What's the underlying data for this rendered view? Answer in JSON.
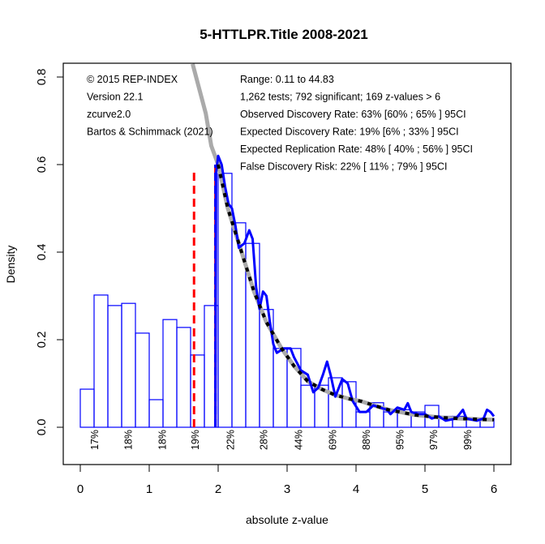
{
  "chart_data": {
    "type": "bar",
    "title": "5-HTTLPR.Title 2008-2021",
    "xlabel": "absolute z-value",
    "ylabel": "Density",
    "xlim": [
      0,
      6
    ],
    "ylim": [
      0,
      0.8
    ],
    "x_ticks": [
      "0",
      "1",
      "2",
      "3",
      "4",
      "5",
      "6"
    ],
    "y_ticks": [
      "0.0",
      "0.2",
      "0.4",
      "0.6",
      "0.8"
    ],
    "grid": false,
    "bin_width": 0.2,
    "bins_start": [
      0,
      0.2,
      0.4,
      0.6,
      0.8,
      1.0,
      1.2,
      1.4,
      1.6,
      1.8,
      2.0,
      2.2,
      2.4,
      2.6,
      2.8,
      3.0,
      3.2,
      3.4,
      3.6,
      3.8,
      4.0,
      4.2,
      4.4,
      4.6,
      4.8,
      5.0,
      5.2,
      5.4,
      5.6,
      5.8
    ],
    "bin_density": [
      0.087,
      0.302,
      0.278,
      0.283,
      0.215,
      0.063,
      0.246,
      0.228,
      0.165,
      0.278,
      0.58,
      0.467,
      0.42,
      0.269,
      0.18,
      0.18,
      0.096,
      0.096,
      0.113,
      0.104,
      0.035,
      0.056,
      0.035,
      0.04,
      0.035,
      0.05,
      0.025,
      0.025,
      0.02,
      0.02
    ],
    "bar_color": "#0000ff",
    "power_labels": [
      {
        "x": 0.2,
        "label": "17%"
      },
      {
        "x": 0.69,
        "label": "18%"
      },
      {
        "x": 1.18,
        "label": "18%"
      },
      {
        "x": 1.66,
        "label": "19%"
      },
      {
        "x": 2.17,
        "label": "22%"
      },
      {
        "x": 2.65,
        "label": "28%"
      },
      {
        "x": 3.16,
        "label": "44%"
      },
      {
        "x": 3.65,
        "label": "69%"
      },
      {
        "x": 4.14,
        "label": "88%"
      },
      {
        "x": 4.63,
        "label": "95%"
      },
      {
        "x": 5.12,
        "label": "97%"
      },
      {
        "x": 5.61,
        "label": "99%"
      }
    ],
    "fitted_curve": {
      "color": "#aaaaaa",
      "points": [
        [
          1.63,
          0.83
        ],
        [
          1.82,
          0.717
        ],
        [
          1.9,
          0.643
        ],
        [
          2.0,
          0.6
        ],
        [
          2.14,
          0.5
        ],
        [
          2.3,
          0.42
        ],
        [
          2.52,
          0.31
        ],
        [
          2.7,
          0.24
        ],
        [
          2.92,
          0.18
        ],
        [
          3.1,
          0.14
        ],
        [
          3.3,
          0.105
        ],
        [
          3.5,
          0.087
        ],
        [
          3.69,
          0.074
        ],
        [
          3.9,
          0.065
        ],
        [
          4.08,
          0.059
        ],
        [
          4.3,
          0.048
        ],
        [
          4.47,
          0.04
        ],
        [
          4.66,
          0.034
        ],
        [
          4.86,
          0.028
        ],
        [
          5.05,
          0.025
        ],
        [
          5.25,
          0.022
        ],
        [
          5.5,
          0.02
        ],
        [
          5.81,
          0.018
        ],
        [
          6.0,
          0.017
        ]
      ]
    },
    "model_dashed_curve": {
      "color": "#000000",
      "start_x": 1.96
    },
    "density_line": {
      "color": "#0000ff",
      "points": [
        [
          1.96,
          0
        ],
        [
          1.97,
          0.58
        ],
        [
          2.0,
          0.62
        ],
        [
          2.05,
          0.6
        ],
        [
          2.1,
          0.55
        ],
        [
          2.15,
          0.51
        ],
        [
          2.2,
          0.5
        ],
        [
          2.25,
          0.46
        ],
        [
          2.3,
          0.41
        ],
        [
          2.38,
          0.42
        ],
        [
          2.45,
          0.45
        ],
        [
          2.5,
          0.43
        ],
        [
          2.55,
          0.32
        ],
        [
          2.6,
          0.27
        ],
        [
          2.65,
          0.31
        ],
        [
          2.7,
          0.3
        ],
        [
          2.75,
          0.24
        ],
        [
          2.8,
          0.19
        ],
        [
          2.85,
          0.17
        ],
        [
          2.95,
          0.18
        ],
        [
          3.05,
          0.18
        ],
        [
          3.1,
          0.16
        ],
        [
          3.2,
          0.13
        ],
        [
          3.3,
          0.12
        ],
        [
          3.38,
          0.08
        ],
        [
          3.45,
          0.09
        ],
        [
          3.52,
          0.12
        ],
        [
          3.58,
          0.15
        ],
        [
          3.63,
          0.12
        ],
        [
          3.7,
          0.07
        ],
        [
          3.8,
          0.11
        ],
        [
          3.88,
          0.1
        ],
        [
          3.95,
          0.06
        ],
        [
          4.05,
          0.035
        ],
        [
          4.15,
          0.035
        ],
        [
          4.25,
          0.05
        ],
        [
          4.35,
          0.045
        ],
        [
          4.45,
          0.04
        ],
        [
          4.5,
          0.03
        ],
        [
          4.6,
          0.045
        ],
        [
          4.7,
          0.04
        ],
        [
          4.75,
          0.055
        ],
        [
          4.8,
          0.035
        ],
        [
          4.9,
          0.03
        ],
        [
          5.0,
          0.03
        ],
        [
          5.1,
          0.02
        ],
        [
          5.2,
          0.025
        ],
        [
          5.3,
          0.015
        ],
        [
          5.45,
          0.02
        ],
        [
          5.55,
          0.04
        ],
        [
          5.6,
          0.02
        ],
        [
          5.75,
          0.015
        ],
        [
          5.85,
          0.02
        ],
        [
          5.9,
          0.04
        ],
        [
          5.95,
          0.035
        ],
        [
          6.0,
          0.025
        ]
      ]
    },
    "vlines": [
      {
        "x": 1.65,
        "ymax": 0.59,
        "color": "#ff0000",
        "style": "dashed"
      },
      {
        "x": 1.96,
        "ymax": 0.6,
        "color": "#ff0000",
        "style": "solid"
      },
      {
        "x": 1.96,
        "ymax": 0.6,
        "color": "#0000ff",
        "style": "dashed"
      }
    ],
    "annotations_left": [
      "© 2015 REP-INDEX",
      "Version 22.1",
      "zcurve2.0",
      "Bartos & Schimmack (2021)"
    ],
    "annotations_right": [
      "Range: 0.11 to 44.83",
      "1,262 tests; 792 significant; 169 z-values > 6",
      "Observed Discovery Rate: 63% [60% ; 65% ] 95CI",
      "Expected Discovery Rate: 19% [6% ; 33% ] 95CI",
      "Expected Replication Rate: 48% [ 40% ; 56% ] 95CI",
      "False Discovery Risk: 22% [ 11% ; 79% ] 95CI"
    ]
  }
}
